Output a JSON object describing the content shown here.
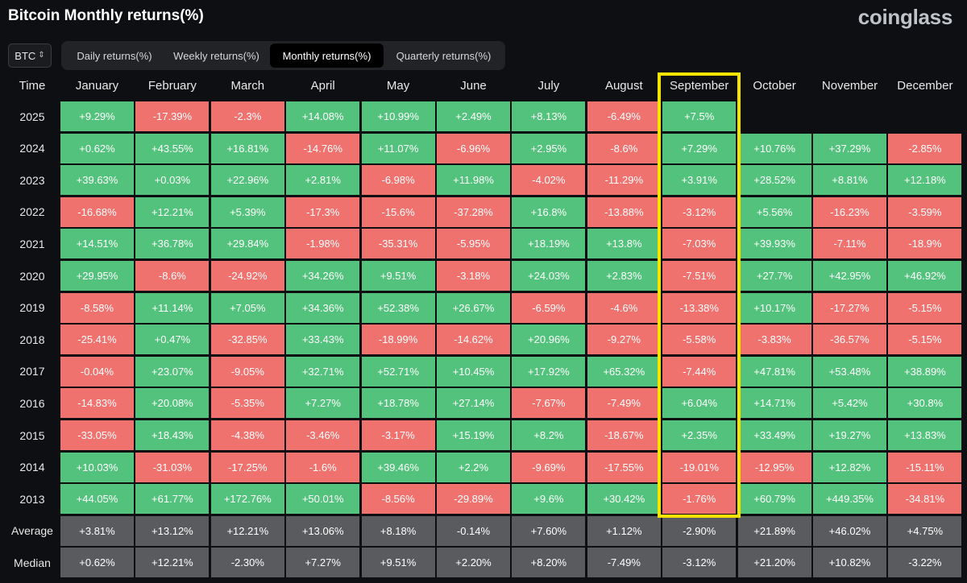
{
  "title": "Bitcoin Monthly returns(%)",
  "brand": "coinglass",
  "asset_select": {
    "value": "BTC"
  },
  "tabs": [
    {
      "label": "Daily returns(%)",
      "active": false
    },
    {
      "label": "Weekly returns(%)",
      "active": false
    },
    {
      "label": "Monthly returns(%)",
      "active": true
    },
    {
      "label": "Quarterly returns(%)",
      "active": false
    }
  ],
  "colors": {
    "positive": "#53c27c",
    "negative": "#f0726f",
    "summary": "#595b5e",
    "highlight": "#f5e300"
  },
  "highlighted_month": "September",
  "chart_data": {
    "type": "heatmap",
    "corner_label": "Time",
    "columns": [
      "January",
      "February",
      "March",
      "April",
      "May",
      "June",
      "July",
      "August",
      "September",
      "October",
      "November",
      "December"
    ],
    "rows": [
      {
        "label": "2025",
        "values": [
          "+9.29%",
          "-17.39%",
          "-2.3%",
          "+14.08%",
          "+10.99%",
          "+2.49%",
          "+8.13%",
          "-6.49%",
          "+7.5%",
          "",
          "",
          ""
        ]
      },
      {
        "label": "2024",
        "values": [
          "+0.62%",
          "+43.55%",
          "+16.81%",
          "-14.76%",
          "+11.07%",
          "-6.96%",
          "+2.95%",
          "-8.6%",
          "+7.29%",
          "+10.76%",
          "+37.29%",
          "-2.85%"
        ]
      },
      {
        "label": "2023",
        "values": [
          "+39.63%",
          "+0.03%",
          "+22.96%",
          "+2.81%",
          "-6.98%",
          "+11.98%",
          "-4.02%",
          "-11.29%",
          "+3.91%",
          "+28.52%",
          "+8.81%",
          "+12.18%"
        ]
      },
      {
        "label": "2022",
        "values": [
          "-16.68%",
          "+12.21%",
          "+5.39%",
          "-17.3%",
          "-15.6%",
          "-37.28%",
          "+16.8%",
          "-13.88%",
          "-3.12%",
          "+5.56%",
          "-16.23%",
          "-3.59%"
        ]
      },
      {
        "label": "2021",
        "values": [
          "+14.51%",
          "+36.78%",
          "+29.84%",
          "-1.98%",
          "-35.31%",
          "-5.95%",
          "+18.19%",
          "+13.8%",
          "-7.03%",
          "+39.93%",
          "-7.11%",
          "-18.9%"
        ]
      },
      {
        "label": "2020",
        "values": [
          "+29.95%",
          "-8.6%",
          "-24.92%",
          "+34.26%",
          "+9.51%",
          "-3.18%",
          "+24.03%",
          "+2.83%",
          "-7.51%",
          "+27.7%",
          "+42.95%",
          "+46.92%"
        ]
      },
      {
        "label": "2019",
        "values": [
          "-8.58%",
          "+11.14%",
          "+7.05%",
          "+34.36%",
          "+52.38%",
          "+26.67%",
          "-6.59%",
          "-4.6%",
          "-13.38%",
          "+10.17%",
          "-17.27%",
          "-5.15%"
        ]
      },
      {
        "label": "2018",
        "values": [
          "-25.41%",
          "+0.47%",
          "-32.85%",
          "+33.43%",
          "-18.99%",
          "-14.62%",
          "+20.96%",
          "-9.27%",
          "-5.58%",
          "-3.83%",
          "-36.57%",
          "-5.15%"
        ]
      },
      {
        "label": "2017",
        "values": [
          "-0.04%",
          "+23.07%",
          "-9.05%",
          "+32.71%",
          "+52.71%",
          "+10.45%",
          "+17.92%",
          "+65.32%",
          "-7.44%",
          "+47.81%",
          "+53.48%",
          "+38.89%"
        ]
      },
      {
        "label": "2016",
        "values": [
          "-14.83%",
          "+20.08%",
          "-5.35%",
          "+7.27%",
          "+18.78%",
          "+27.14%",
          "-7.67%",
          "-7.49%",
          "+6.04%",
          "+14.71%",
          "+5.42%",
          "+30.8%"
        ]
      },
      {
        "label": "2015",
        "values": [
          "-33.05%",
          "+18.43%",
          "-4.38%",
          "-3.46%",
          "-3.17%",
          "+15.19%",
          "+8.2%",
          "-18.67%",
          "+2.35%",
          "+33.49%",
          "+19.27%",
          "+13.83%"
        ]
      },
      {
        "label": "2014",
        "values": [
          "+10.03%",
          "-31.03%",
          "-17.25%",
          "-1.6%",
          "+39.46%",
          "+2.2%",
          "-9.69%",
          "-17.55%",
          "-19.01%",
          "-12.95%",
          "+12.82%",
          "-15.11%"
        ]
      },
      {
        "label": "2013",
        "values": [
          "+44.05%",
          "+61.77%",
          "+172.76%",
          "+50.01%",
          "-8.56%",
          "-29.89%",
          "+9.6%",
          "+30.42%",
          "-1.76%",
          "+60.79%",
          "+449.35%",
          "-34.81%"
        ]
      }
    ],
    "summary_rows": [
      {
        "label": "Average",
        "values": [
          "+3.81%",
          "+13.12%",
          "+12.21%",
          "+13.06%",
          "+8.18%",
          "-0.14%",
          "+7.60%",
          "+1.12%",
          "-2.90%",
          "+21.89%",
          "+46.02%",
          "+4.75%"
        ]
      },
      {
        "label": "Median",
        "values": [
          "+0.62%",
          "+12.21%",
          "-2.30%",
          "+7.27%",
          "+9.51%",
          "+2.20%",
          "+8.20%",
          "-7.49%",
          "-3.12%",
          "+21.20%",
          "+10.82%",
          "-3.22%"
        ]
      }
    ]
  }
}
